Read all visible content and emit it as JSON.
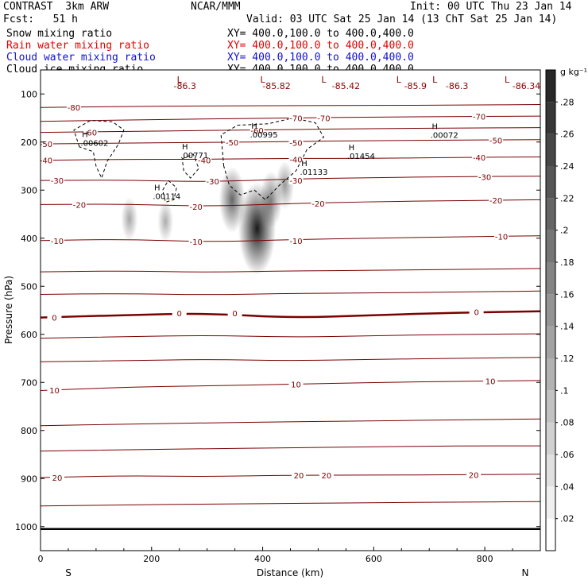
{
  "header": {
    "left1": "CONTRAST  3km ARW",
    "center1": "NCAR/MMM",
    "right1": "Init: 00 UTC Thu 23 Jan 14",
    "left2": "Fcst:   51 h",
    "right2": "Valid: 03 UTC Sat 25 Jan 14 (13 ChT Sat 25 Jan 14)",
    "fields": [
      {
        "name": "Snow mixing ratio",
        "xy": "XY= 400.0,100.0 to 400.0,400.0",
        "color": "#000000"
      },
      {
        "name": "Rain water mixing ratio",
        "xy": "XY= 400.0,100.0 to 400.0,400.0",
        "color": "#e00000"
      },
      {
        "name": "Cloud water mixing ratio",
        "xy": "XY= 400.0,100.0 to 400.0,400.0",
        "color": "#1010d0"
      },
      {
        "name": "Cloud ice mixing ratio",
        "xy": "XY= 400.0,100.0 to 400.0,400.0",
        "color": "#000000"
      }
    ]
  },
  "chart_data": {
    "type": "heatmap",
    "title": "Snow mixing ratio",
    "xlabel": "Distance (km)",
    "ylabel": "Pressure (hPa)",
    "xlim": [
      0,
      900
    ],
    "ylim": [
      1050,
      50
    ],
    "x_ticks": [
      0,
      200,
      400,
      600,
      800
    ],
    "y_ticks": [
      100,
      200,
      300,
      400,
      500,
      600,
      700,
      800,
      900,
      1000
    ],
    "x_end_labels": [
      "S",
      "N"
    ],
    "colorbar": {
      "unit": "g kg⁻¹",
      "ticks": [
        ".02",
        ".04",
        ".06",
        ".08",
        ".1",
        ".12",
        ".14",
        ".16",
        ".18",
        ".2",
        ".22",
        ".24",
        ".26",
        ".28"
      ],
      "min": 0,
      "max": 0.3
    },
    "temperature_contours": [
      {
        "label": "-80",
        "p": [
          128,
          126,
          125,
          124,
          124,
          123,
          122
        ]
      },
      {
        "label": "-70",
        "p": [
          157,
          154,
          152,
          150,
          148,
          147,
          146
        ]
      },
      {
        "label": "-60",
        "p": [
          180,
          178,
          176,
          174,
          172,
          171,
          170
        ]
      },
      {
        "label": "-50",
        "p": [
          204,
          202,
          201,
          199,
          197,
          196,
          195
        ]
      },
      {
        "label": "-40",
        "p": [
          238,
          236,
          236,
          234,
          234,
          232,
          231
        ]
      },
      {
        "label": "-30",
        "p": [
          280,
          279,
          283,
          277,
          274,
          272,
          271
        ]
      },
      {
        "label": "-20",
        "p": [
          330,
          329,
          334,
          328,
          324,
          322,
          320
        ]
      },
      {
        "label": "-10",
        "p": [
          405,
          402,
          408,
          403,
          400,
          397,
          395
        ]
      },
      {
        "label": "-",
        "p": [
          470,
          468,
          471,
          468,
          467,
          465,
          463
        ]
      },
      {
        "label": "-",
        "p": [
          517,
          515,
          518,
          515,
          514,
          512,
          510
        ]
      },
      {
        "label": "0",
        "p": [
          565,
          560,
          556,
          566,
          560,
          555,
          552
        ]
      },
      {
        "label": "",
        "p": [
          608,
          605,
          602,
          606,
          603,
          600,
          599
        ]
      },
      {
        "label": "",
        "p": [
          657,
          655,
          652,
          655,
          652,
          650,
          648
        ]
      },
      {
        "label": "10",
        "p": [
          717,
          710,
          707,
          704,
          700,
          698,
          696
        ]
      },
      {
        "label": "",
        "p": [
          790,
          787,
          784,
          782,
          780,
          778,
          776
        ]
      },
      {
        "label": "",
        "p": [
          843,
          840,
          838,
          836,
          834,
          832,
          832
        ]
      },
      {
        "label": "20",
        "p": [
          898,
          894,
          896,
          893,
          893,
          892,
          891
        ]
      },
      {
        "label": "",
        "p": [
          957,
          955,
          953,
          952,
          950,
          949,
          948
        ]
      }
    ],
    "contour_x": [
      0,
      150,
      300,
      450,
      600,
      750,
      900
    ],
    "contour_label_positions": [
      {
        "label": "-80",
        "x": 60,
        "p": 128
      },
      {
        "label": "-70",
        "x": 460,
        "p": 150
      },
      {
        "label": "-70",
        "x": 510,
        "p": 150
      },
      {
        "label": "-70",
        "x": 790,
        "p": 147
      },
      {
        "label": "-60",
        "x": 90,
        "p": 180
      },
      {
        "label": "-60",
        "x": 390,
        "p": 176
      },
      {
        "label": "-50",
        "x": 10,
        "p": 204
      },
      {
        "label": "-50",
        "x": 345,
        "p": 200
      },
      {
        "label": "-50",
        "x": 460,
        "p": 201
      },
      {
        "label": "-50",
        "x": 820,
        "p": 196
      },
      {
        "label": "-40",
        "x": 10,
        "p": 238
      },
      {
        "label": "-40",
        "x": 295,
        "p": 238
      },
      {
        "label": "-40",
        "x": 460,
        "p": 236
      },
      {
        "label": "-40",
        "x": 790,
        "p": 232
      },
      {
        "label": "-30",
        "x": 30,
        "p": 280
      },
      {
        "label": "-30",
        "x": 310,
        "p": 281
      },
      {
        "label": "-30",
        "x": 460,
        "p": 280
      },
      {
        "label": "-30",
        "x": 800,
        "p": 272
      },
      {
        "label": "-20",
        "x": 70,
        "p": 330
      },
      {
        "label": "-20",
        "x": 280,
        "p": 334
      },
      {
        "label": "-20",
        "x": 500,
        "p": 328
      },
      {
        "label": "-20",
        "x": 820,
        "p": 321
      },
      {
        "label": "-10",
        "x": 30,
        "p": 405
      },
      {
        "label": "-10",
        "x": 280,
        "p": 407
      },
      {
        "label": "-10",
        "x": 460,
        "p": 405
      },
      {
        "label": "-10",
        "x": 830,
        "p": 396
      },
      {
        "label": "0",
        "x": 25,
        "p": 565
      },
      {
        "label": "0",
        "x": 250,
        "p": 556
      },
      {
        "label": "0",
        "x": 350,
        "p": 556
      },
      {
        "label": "0",
        "x": 785,
        "p": 553
      },
      {
        "label": "10",
        "x": 25,
        "p": 716
      },
      {
        "label": "10",
        "x": 460,
        "p": 704
      },
      {
        "label": "10",
        "x": 810,
        "p": 697
      },
      {
        "label": "20",
        "x": 30,
        "p": 898
      },
      {
        "label": "20",
        "x": 465,
        "p": 893
      },
      {
        "label": "20",
        "x": 515,
        "p": 893
      },
      {
        "label": "20",
        "x": 780,
        "p": 892
      }
    ],
    "lows": [
      {
        "label": "L",
        "x": 250,
        "p": 70
      },
      {
        "label": "L",
        "x": 400,
        "p": 70
      },
      {
        "label": "L",
        "x": 510,
        "p": 70
      },
      {
        "label": "L",
        "x": 645,
        "p": 70
      },
      {
        "label": "L",
        "x": 710,
        "p": 70
      },
      {
        "label": "L",
        "x": 840,
        "p": 70
      }
    ],
    "low_values": [
      {
        "label": "-86.3",
        "x": 260,
        "p": 83
      },
      {
        "label": "-85.82",
        "x": 425,
        "p": 83
      },
      {
        "label": "-85.42",
        "x": 550,
        "p": 83
      },
      {
        "label": "-85.9",
        "x": 675,
        "p": 83
      },
      {
        "label": "-86.3",
        "x": 750,
        "p": 83
      },
      {
        "label": "-86.34",
        "x": 875,
        "p": 83
      }
    ],
    "highs": [
      {
        "label": "H",
        "x": 80,
        "p": 190,
        "value": ".00602"
      },
      {
        "label": "H",
        "x": 260,
        "p": 215,
        "value": ".00771"
      },
      {
        "label": "H",
        "x": 210,
        "p": 300,
        "value": ".00114"
      },
      {
        "label": "H",
        "x": 385,
        "p": 172,
        "value": ".00995"
      },
      {
        "label": "H",
        "x": 475,
        "p": 250,
        "value": ".01133"
      },
      {
        "label": "H",
        "x": 560,
        "p": 217,
        "value": ".01454"
      },
      {
        "label": "H",
        "x": 710,
        "p": 173,
        "value": ".00072"
      }
    ],
    "snow_blobs": [
      {
        "x": 390,
        "p": 380,
        "value": 0.26
      },
      {
        "x": 345,
        "p": 320,
        "value": 0.14
      },
      {
        "x": 415,
        "p": 320,
        "value": 0.1
      },
      {
        "x": 440,
        "p": 290,
        "value": 0.06
      },
      {
        "x": 160,
        "p": 360,
        "value": 0.04
      },
      {
        "x": 225,
        "p": 365,
        "value": 0.03
      }
    ]
  }
}
